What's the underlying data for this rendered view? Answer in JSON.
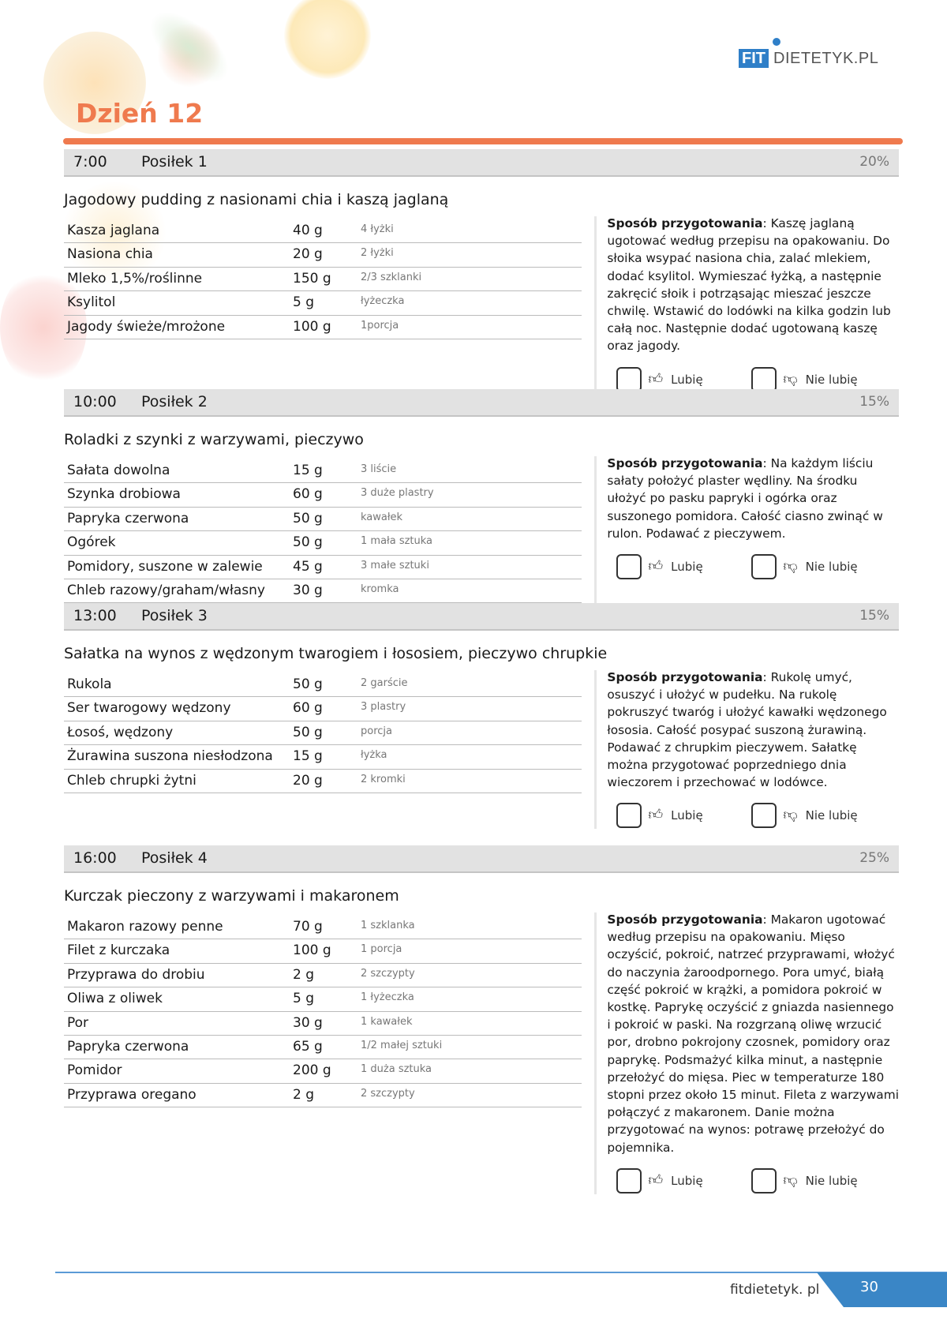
{
  "logo": {
    "fit": "FIT",
    "rest": "DIETETYK.PL"
  },
  "day_title": "Dzień 12",
  "colors": {
    "accent": "#ef7a4e",
    "brand": "#3a86c6",
    "header_band": "#e2e2e2"
  },
  "prep_label": "Sposób przygotowania",
  "like_label": "Lubię",
  "dislike_label": "Nie lubię",
  "meals": [
    {
      "time": "7:00",
      "name": "Posiłek 1",
      "percent": "20%",
      "title": "Jagodowy pudding z nasionami chia i kaszą jaglaną",
      "ingredients": [
        {
          "name": "Kasza jaglana",
          "amount": "40 g",
          "household": "4 łyżki"
        },
        {
          "name": "Nasiona chia",
          "amount": "20 g",
          "household": "2 łyżki"
        },
        {
          "name": "Mleko 1,5%/roślinne",
          "amount": "150 g",
          "household": "2/3 szklanki"
        },
        {
          "name": "Ksylitol",
          "amount": "5 g",
          "household": "łyżeczka"
        },
        {
          "name": "Jagody świeże/mrożone",
          "amount": "100 g",
          "household": "1porcja"
        }
      ],
      "preparation": "Kaszę jaglaną ugotować według przepisu na opakowaniu. Do słoika wsypać nasiona chia, zalać mlekiem, dodać ksylitol. Wymieszać łyżką, a następnie zakręcić słoik i potrząsając mieszać jeszcze chwilę. Wstawić do lodówki na kilka godzin lub całą noc. Następnie dodać ugotowaną kaszę oraz jagody."
    },
    {
      "time": "10:00",
      "name": "Posiłek 2",
      "percent": "15%",
      "title": "Roladki z szynki z warzywami, pieczywo",
      "ingredients": [
        {
          "name": "Sałata dowolna",
          "amount": "15 g",
          "household": "3 liście"
        },
        {
          "name": "Szynka drobiowa",
          "amount": "60 g",
          "household": "3 duże plastry"
        },
        {
          "name": "Papryka czerwona",
          "amount": "50 g",
          "household": "kawałek"
        },
        {
          "name": "Ogórek",
          "amount": "50 g",
          "household": "1 mała sztuka"
        },
        {
          "name": "Pomidory, suszone w zalewie",
          "amount": "45 g",
          "household": "3 małe sztuki"
        },
        {
          "name": "Chleb razowy/graham/własny",
          "amount": "30 g",
          "household": "kromka"
        }
      ],
      "preparation": "Na każdym liściu sałaty położyć plaster wędliny. Na środku ułożyć po pasku papryki i ogórka oraz suszonego pomidora. Całość ciasno zwinąć w rulon. Podawać z pieczywem."
    },
    {
      "time": "13:00",
      "name": "Posiłek 3",
      "percent": "15%",
      "title": "Sałatka na wynos z wędzonym twarogiem i łososiem, pieczywo chrupkie",
      "ingredients": [
        {
          "name": "Rukola",
          "amount": "50 g",
          "household": "2 garście"
        },
        {
          "name": "Ser twarogowy wędzony",
          "amount": "60 g",
          "household": "3 plastry"
        },
        {
          "name": "Łosoś, wędzony",
          "amount": "50 g",
          "household": "porcja"
        },
        {
          "name": "Żurawina suszona niesłodzona",
          "amount": "15 g",
          "household": "łyżka"
        },
        {
          "name": "Chleb chrupki żytni",
          "amount": "20 g",
          "household": "2 kromki"
        }
      ],
      "preparation": "Rukolę umyć, osuszyć i ułożyć w pudełku. Na rukolę pokruszyć twaróg i ułożyć kawałki wędzonego łososia. Całość posypać suszoną żurawiną. Podawać z chrupkim pieczywem. Sałatkę można przygotować poprzedniego dnia wieczorem i przechować w lodówce."
    },
    {
      "time": "16:00",
      "name": "Posiłek 4",
      "percent": "25%",
      "title": "Kurczak pieczony z warzywami i makaronem",
      "ingredients": [
        {
          "name": "Makaron razowy penne",
          "amount": "70 g",
          "household": "1 szklanka"
        },
        {
          "name": "Filet z kurczaka",
          "amount": "100 g",
          "household": "1 porcja"
        },
        {
          "name": "Przyprawa do drobiu",
          "amount": "2 g",
          "household": "2 szczypty"
        },
        {
          "name": "Oliwa z oliwek",
          "amount": "5 g",
          "household": "1 łyżeczka"
        },
        {
          "name": "Por",
          "amount": "30 g",
          "household": "1 kawałek"
        },
        {
          "name": "Papryka czerwona",
          "amount": "65 g",
          "household": "1/2 małej sztuki"
        },
        {
          "name": "Pomidor",
          "amount": "200 g",
          "household": "1 duża sztuka"
        },
        {
          "name": "Przyprawa oregano",
          "amount": "2 g",
          "household": "2 szczypty"
        }
      ],
      "preparation": "Makaron ugotować według przepisu na opakowaniu. Mięso oczyścić, pokroić, natrzeć przyprawami, włożyć do naczynia żaroodpornego. Pora umyć, białą część pokroić w krążki, a pomidora pokroić w kostkę. Paprykę oczyścić z gniazda nasiennego i pokroić w paski. Na rozgrzaną oliwę wrzucić por, drobno pokrojony czosnek, pomidory oraz paprykę. Podsmażyć kilka minut, a następnie przełożyć do mięsa. Piec w temperaturze 180 stopni przez około 15 minut. Fileta z warzywami połączyć z makaronem. Danie można przygotować na wynos: potrawę przełożyć do pojemnika."
    }
  ],
  "footer": {
    "site": "fitdietetyk. pl",
    "page_number": "30"
  }
}
